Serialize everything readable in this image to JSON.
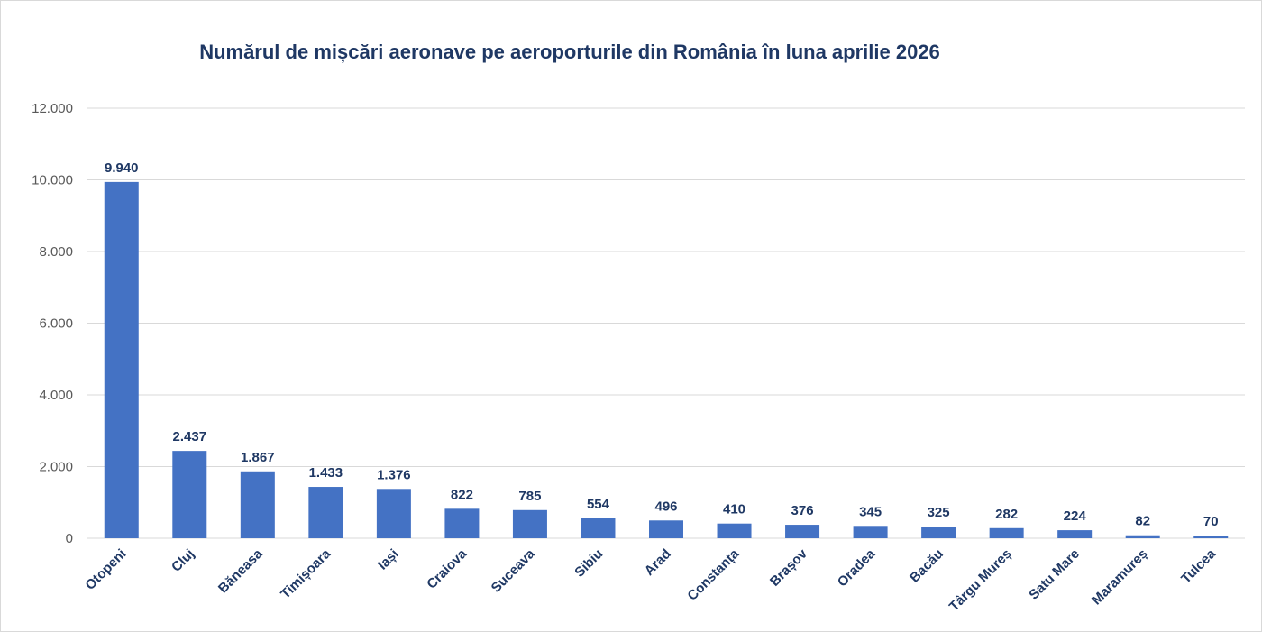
{
  "chart_data": {
    "type": "bar",
    "title": "Numărul de mișcări aeronave pe aeroporturile din România în luna aprilie 2026",
    "xlabel": "",
    "ylabel": "",
    "categories": [
      "Otopeni",
      "Cluj",
      "Băneasa",
      "Timișoara",
      "Iași",
      "Craiova",
      "Suceava",
      "Sibiu",
      "Arad",
      "Constanța",
      "Brașov",
      "Oradea",
      "Bacău",
      "Târgu Mureș",
      "Satu Mare",
      "Maramureș",
      "Tulcea"
    ],
    "values": [
      9940,
      2437,
      1867,
      1433,
      1376,
      822,
      785,
      554,
      496,
      410,
      376,
      345,
      325,
      282,
      224,
      82,
      70
    ],
    "data_labels": [
      "9.940",
      "2.437",
      "1.867",
      "1.433",
      "1.376",
      "822",
      "785",
      "554",
      "496",
      "410",
      "376",
      "345",
      "325",
      "282",
      "224",
      "82",
      "70"
    ],
    "ylim": [
      0,
      12000
    ],
    "y_ticks": [
      0,
      2000,
      4000,
      6000,
      8000,
      10000,
      12000
    ],
    "y_tick_labels": [
      "0",
      "2.000",
      "4.000",
      "6.000",
      "8.000",
      "10.000",
      "12.000"
    ],
    "grid": true,
    "legend": "none",
    "bar_color": "#4472c4",
    "title_color": "#1f3864",
    "label_color": "#1f3864",
    "tick_color": "#595959",
    "grid_color": "#d9d9d9"
  }
}
